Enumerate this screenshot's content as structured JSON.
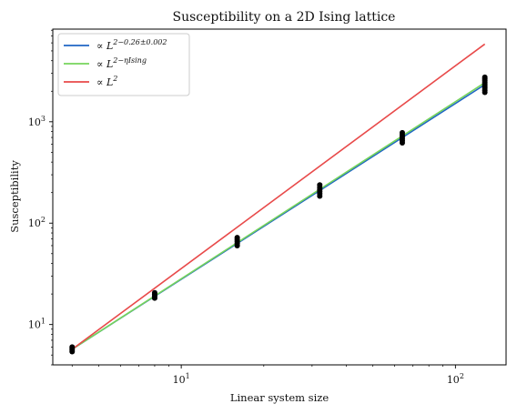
{
  "chart_data": {
    "type": "line",
    "title": "Susceptibility on a 2D Ising lattice",
    "xlabel": "Linear system size",
    "ylabel": "Susceptibility",
    "xscale": "log",
    "yscale": "log",
    "xlim": [
      3.4,
      153
    ],
    "ylim": [
      4.0,
      8200
    ],
    "grid": false,
    "legend_position": "top-left",
    "x_ticks": [
      {
        "value": 10,
        "label": "10",
        "sup": "1"
      },
      {
        "value": 100,
        "label": "10",
        "sup": "2"
      }
    ],
    "y_ticks": [
      {
        "value": 10,
        "label": "10",
        "sup": "1"
      },
      {
        "value": 100,
        "label": "10",
        "sup": "2"
      },
      {
        "value": 1000,
        "label": "10",
        "sup": "3"
      }
    ],
    "series": [
      {
        "name": "∝ L^(2−0.26±0.002)",
        "legend_base": "∝ L",
        "legend_sup": "2−0.26±0.002",
        "kind": "line",
        "color": "#1f66c4",
        "x": [
          4,
          128
        ],
        "y": [
          5.7,
          2325
        ]
      },
      {
        "name": "∝ L^(2−η_Ising)",
        "legend_base": "∝ L",
        "legend_sup": "2−ηIsing",
        "kind": "line",
        "color": "#76d45c",
        "x": [
          4,
          128
        ],
        "y": [
          5.7,
          2430
        ]
      },
      {
        "name": "∝ L^2",
        "legend_base": "∝ L",
        "legend_sup": "2",
        "kind": "line",
        "color": "#e84a4a",
        "x": [
          4,
          128
        ],
        "y": [
          5.7,
          5840
        ]
      },
      {
        "name": "",
        "kind": "scatter",
        "color": "#000000",
        "points": [
          {
            "x": 4,
            "y": 5.4
          },
          {
            "x": 4,
            "y": 5.6
          },
          {
            "x": 4,
            "y": 5.8
          },
          {
            "x": 4,
            "y": 6.0
          },
          {
            "x": 8,
            "y": 18.2
          },
          {
            "x": 8,
            "y": 19.0
          },
          {
            "x": 8,
            "y": 19.8
          },
          {
            "x": 8,
            "y": 20.6
          },
          {
            "x": 16,
            "y": 60
          },
          {
            "x": 16,
            "y": 63
          },
          {
            "x": 16,
            "y": 66
          },
          {
            "x": 16,
            "y": 69
          },
          {
            "x": 16,
            "y": 72
          },
          {
            "x": 32,
            "y": 185
          },
          {
            "x": 32,
            "y": 195
          },
          {
            "x": 32,
            "y": 205
          },
          {
            "x": 32,
            "y": 215
          },
          {
            "x": 32,
            "y": 225
          },
          {
            "x": 32,
            "y": 238
          },
          {
            "x": 64,
            "y": 620
          },
          {
            "x": 64,
            "y": 650
          },
          {
            "x": 64,
            "y": 680
          },
          {
            "x": 64,
            "y": 710
          },
          {
            "x": 64,
            "y": 745
          },
          {
            "x": 64,
            "y": 780
          },
          {
            "x": 128,
            "y": 1950
          },
          {
            "x": 128,
            "y": 2050
          },
          {
            "x": 128,
            "y": 2150
          },
          {
            "x": 128,
            "y": 2250
          },
          {
            "x": 128,
            "y": 2350
          },
          {
            "x": 128,
            "y": 2450
          },
          {
            "x": 128,
            "y": 2550
          },
          {
            "x": 128,
            "y": 2650
          },
          {
            "x": 128,
            "y": 2750
          }
        ]
      }
    ]
  }
}
